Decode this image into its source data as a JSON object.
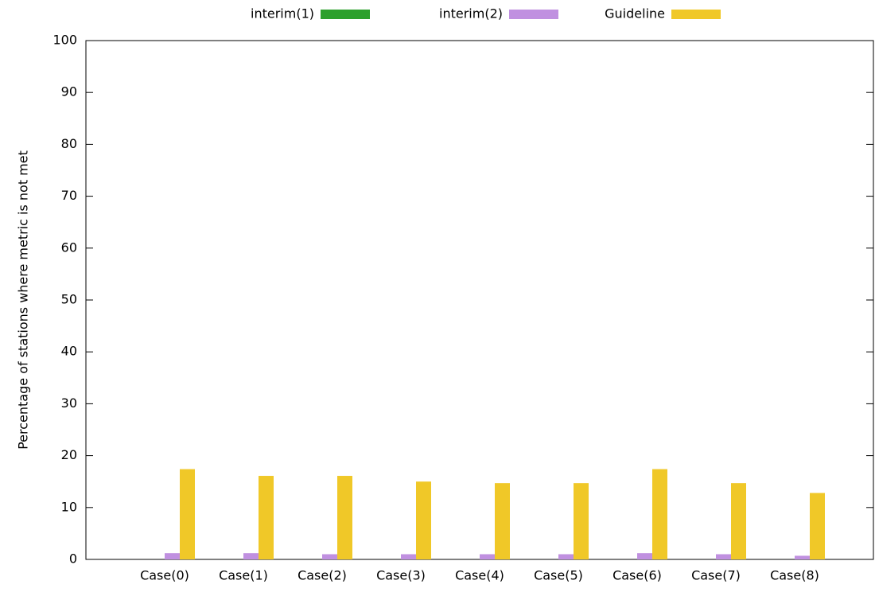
{
  "chart_data": {
    "type": "bar",
    "y_label": "Percentage of stations where metric is not met",
    "categories": [
      "Case(0)",
      "Case(1)",
      "Case(2)",
      "Case(3)",
      "Case(4)",
      "Case(5)",
      "Case(6)",
      "Case(7)",
      "Case(8)"
    ],
    "series": [
      {
        "name": "interim(1)",
        "color": "#2ca02c",
        "values": [
          0,
          0,
          0,
          0,
          0,
          0,
          0,
          0,
          0
        ]
      },
      {
        "name": "interim(2)",
        "color": "#c090e0",
        "values": [
          1.2,
          1.2,
          1.0,
          1.0,
          1.0,
          1.0,
          1.2,
          1.0,
          0.7
        ]
      },
      {
        "name": "Guideline",
        "color": "#f0c828",
        "values": [
          17.4,
          16.1,
          16.1,
          15.0,
          14.7,
          14.7,
          17.4,
          14.7,
          12.8
        ]
      }
    ],
    "ylim": [
      0,
      100
    ],
    "yticks": [
      0,
      10,
      20,
      30,
      40,
      50,
      60,
      70,
      80,
      90,
      100
    ],
    "legend": "top"
  }
}
